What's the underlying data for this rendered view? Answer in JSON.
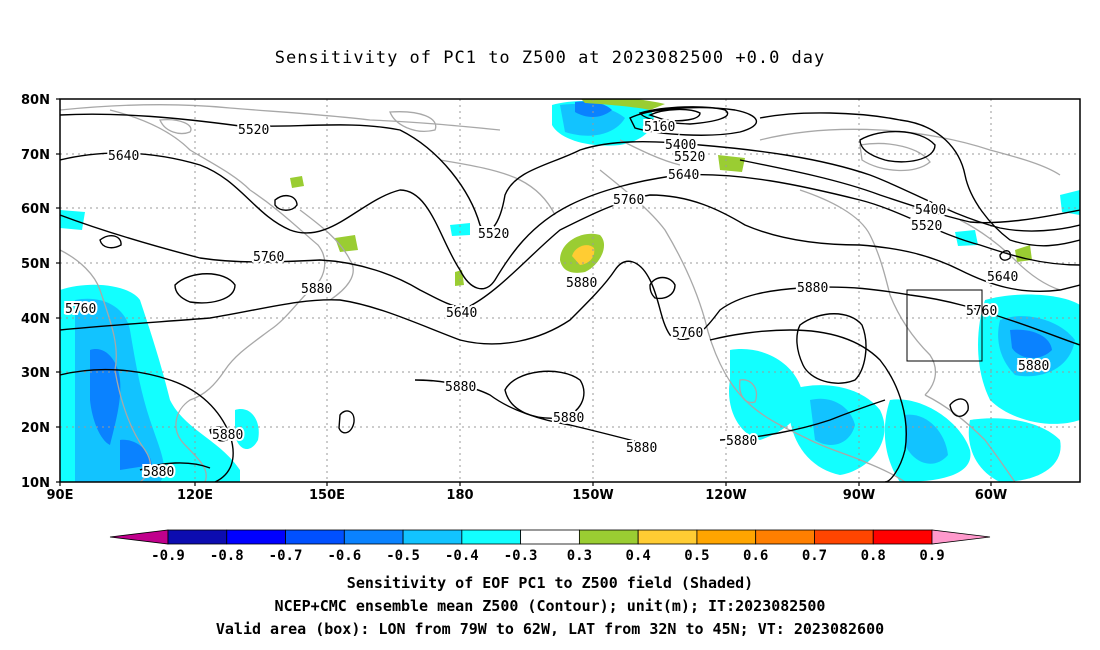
{
  "title": "Sensitivity of PC1 to Z500 at 2023082500 +0.0 day",
  "lat_labels": [
    "80N",
    "70N",
    "60N",
    "50N",
    "40N",
    "30N",
    "20N",
    "10N"
  ],
  "lon_labels": [
    "90E",
    "120E",
    "150E",
    "180",
    "150W",
    "120W",
    "90W",
    "60W"
  ],
  "contour_labels": [
    "5160",
    "5400",
    "5520",
    "5640",
    "5760",
    "5880",
    "5520",
    "5640",
    "5760",
    "5880",
    "5400",
    "5520",
    "5640",
    "5760",
    "5880",
    "5880",
    "5880",
    "5880",
    "5880",
    "5520",
    "5640",
    "5760",
    "5880"
  ],
  "colorbar": {
    "values": [
      "-0.9",
      "-0.8",
      "-0.7",
      "-0.6",
      "-0.5",
      "-0.4",
      "-0.3",
      "0.3",
      "0.4",
      "0.5",
      "0.6",
      "0.7",
      "0.8",
      "0.9"
    ],
    "colors": [
      "#c0008c",
      "#0c0cb0",
      "#0000ff",
      "#0050ff",
      "#0a82ff",
      "#12c3ff",
      "#12ffff",
      "#ffffff",
      "#9acd32",
      "#ffcc33",
      "#ffa500",
      "#ff7f00",
      "#ff4500",
      "#ff0000",
      "#ff99cc"
    ]
  },
  "valid_box": {
    "lon_from": "79W",
    "lon_to": "62W",
    "lat_from": "32N",
    "lat_to": "45N"
  },
  "footer": {
    "line1": "Sensitivity of EOF PC1 to Z500 field (Shaded)",
    "line2": "NCEP+CMC ensemble mean Z500 (Contour); unit(m); IT:2023082500",
    "line3": "Valid area (box): LON from 79W to 62W, LAT from 32N to 45N; VT: 2023082600"
  }
}
